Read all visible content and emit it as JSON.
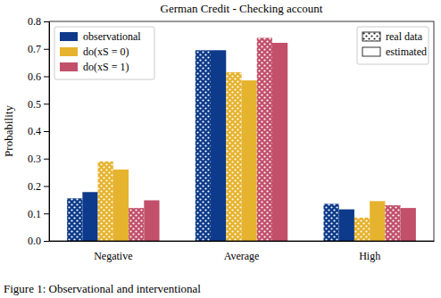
{
  "chart_data": {
    "type": "bar",
    "title": "German Credit - Checking account",
    "y_label": "Probability",
    "categories": [
      "Negative",
      "Average",
      "High"
    ],
    "series": [
      {
        "name": "observational",
        "color": "#0d3a8a",
        "values_real": [
          0.155,
          0.695,
          0.135
        ],
        "values": [
          0.178,
          0.695,
          0.115
        ]
      },
      {
        "name": "do(xS = 0)",
        "color": "#e6b32e",
        "values_real": [
          0.29,
          0.615,
          0.085
        ],
        "values": [
          0.26,
          0.585,
          0.145
        ]
      },
      {
        "name": "do(xS = 1)",
        "color": "#c2506b",
        "values_real": [
          0.12,
          0.74,
          0.13
        ],
        "values": [
          0.148,
          0.722,
          0.12
        ]
      }
    ],
    "pattern_legend": [
      "real data",
      "estimated"
    ],
    "ylim": [
      0,
      0.8
    ],
    "yticks": [
      {
        "value": 0,
        "label": "0.0"
      },
      0.1,
      0.2,
      0.3,
      0.4,
      0.5,
      0.6,
      0.7,
      0.8
    ],
    "annotations": [
      "Figure 1: Observational and interventional"
    ]
  }
}
